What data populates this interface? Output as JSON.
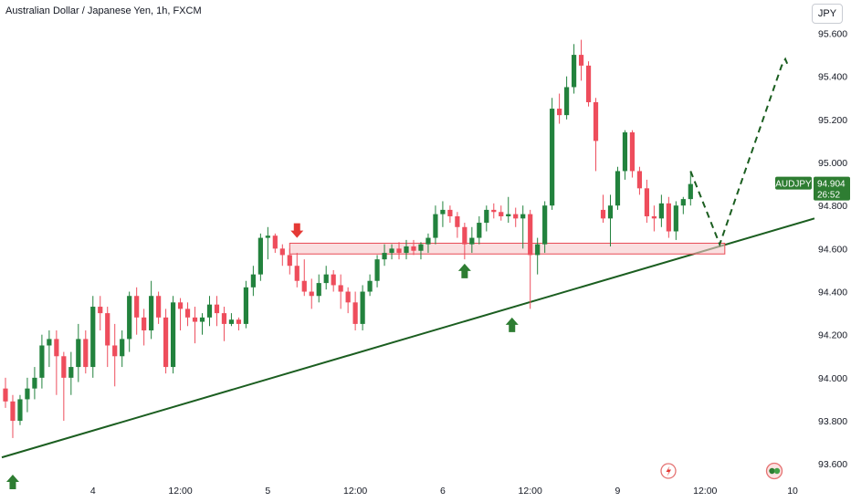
{
  "header": {
    "title": "Australian Dollar / Japanese Yen, 1h, FXCM",
    "currency_button": "JPY"
  },
  "price_badge": {
    "symbol": "AUDJPY",
    "price": "94.904",
    "countdown": "26:52"
  },
  "colors": {
    "up": "#22823d",
    "down": "#ee4d5c",
    "trendline": "#1b5e20",
    "zone_fill": "#f7c9cc",
    "zone_border": "#e84b55",
    "arrow_up": "#2e7d32",
    "arrow_down": "#e53935",
    "badge": "#2e7d32",
    "symbol_badge": "#2e7d32"
  },
  "icons": [
    "lightning-icon",
    "earnings-icon"
  ],
  "chart_data": {
    "type": "candlestick",
    "xlabel": "",
    "ylabel": "",
    "ylim": [
      93.55,
      95.67
    ],
    "ytick_labels": [
      "95.600",
      "95.400",
      "95.200",
      "95.000",
      "94.800",
      "94.600",
      "94.400",
      "94.200",
      "94.000",
      "93.800",
      "93.600"
    ],
    "yticks": [
      95.6,
      95.4,
      95.2,
      95.0,
      94.8,
      94.6,
      94.4,
      94.2,
      94.0,
      93.8,
      93.6
    ],
    "xtick_labels": [
      "4",
      "12:00",
      "5",
      "12:00",
      "6",
      "12:00",
      "9",
      "12:00",
      "10"
    ],
    "xtick_positions": [
      12.5,
      24.5,
      36.5,
      48.5,
      60.5,
      72.5,
      84.5,
      96.5,
      108.5
    ],
    "x_domain": [
      0,
      111
    ],
    "candles": [
      [
        93.95,
        94.0,
        93.86,
        93.89
      ],
      [
        93.89,
        93.92,
        93.72,
        93.8
      ],
      [
        93.8,
        93.92,
        93.78,
        93.9
      ],
      [
        93.9,
        94.0,
        93.84,
        93.95
      ],
      [
        93.95,
        94.05,
        93.9,
        94.0
      ],
      [
        94.0,
        94.2,
        93.95,
        94.15
      ],
      [
        94.15,
        94.22,
        94.05,
        94.18
      ],
      [
        94.18,
        94.22,
        93.92,
        94.1
      ],
      [
        94.1,
        94.12,
        93.8,
        94.0
      ],
      [
        94.0,
        94.12,
        93.92,
        94.05
      ],
      [
        94.05,
        94.25,
        93.98,
        94.18
      ],
      [
        94.18,
        94.22,
        94.02,
        94.05
      ],
      [
        94.05,
        94.38,
        94.0,
        94.33
      ],
      [
        94.33,
        94.38,
        94.22,
        94.3
      ],
      [
        94.3,
        94.33,
        94.05,
        94.15
      ],
      [
        94.15,
        94.25,
        93.96,
        94.1
      ],
      [
        94.1,
        94.22,
        94.05,
        94.18
      ],
      [
        94.18,
        94.4,
        94.12,
        94.38
      ],
      [
        94.38,
        94.42,
        94.2,
        94.28
      ],
      [
        94.28,
        94.32,
        94.15,
        94.22
      ],
      [
        94.22,
        94.45,
        94.18,
        94.38
      ],
      [
        94.38,
        94.4,
        94.25,
        94.28
      ],
      [
        94.28,
        94.32,
        94.02,
        94.05
      ],
      [
        94.05,
        94.38,
        94.02,
        94.35
      ],
      [
        94.35,
        94.37,
        94.22,
        94.32
      ],
      [
        94.32,
        94.35,
        94.24,
        94.28
      ],
      [
        94.28,
        94.33,
        94.16,
        94.26
      ],
      [
        94.26,
        94.3,
        94.2,
        94.28
      ],
      [
        94.28,
        94.38,
        94.24,
        94.34
      ],
      [
        94.34,
        94.38,
        94.24,
        94.3
      ],
      [
        94.3,
        94.33,
        94.17,
        94.25
      ],
      [
        94.25,
        94.3,
        94.24,
        94.27
      ],
      [
        94.27,
        94.28,
        94.22,
        94.25
      ],
      [
        94.25,
        94.45,
        94.23,
        94.42
      ],
      [
        94.42,
        94.52,
        94.38,
        94.48
      ],
      [
        94.48,
        94.67,
        94.45,
        94.65
      ],
      [
        94.65,
        94.7,
        94.55,
        94.66
      ],
      [
        94.66,
        94.67,
        94.58,
        94.6
      ],
      [
        94.6,
        94.62,
        94.52,
        94.57
      ],
      [
        94.57,
        94.6,
        94.48,
        94.52
      ],
      [
        94.52,
        94.58,
        94.42,
        94.45
      ],
      [
        94.45,
        94.55,
        94.38,
        94.4
      ],
      [
        94.4,
        94.46,
        94.32,
        94.38
      ],
      [
        94.38,
        94.48,
        94.35,
        94.44
      ],
      [
        94.44,
        94.52,
        94.41,
        94.48
      ],
      [
        94.48,
        94.5,
        94.4,
        94.43
      ],
      [
        94.43,
        94.48,
        94.32,
        94.4
      ],
      [
        94.4,
        94.42,
        94.3,
        94.35
      ],
      [
        94.35,
        94.4,
        94.22,
        94.25
      ],
      [
        94.25,
        94.43,
        94.22,
        94.4
      ],
      [
        94.4,
        94.48,
        94.38,
        94.45
      ],
      [
        94.45,
        94.57,
        94.42,
        94.55
      ],
      [
        94.55,
        94.62,
        94.52,
        94.58
      ],
      [
        94.58,
        94.62,
        94.55,
        94.6
      ],
      [
        94.6,
        94.63,
        94.55,
        94.58
      ],
      [
        94.58,
        94.64,
        94.55,
        94.61
      ],
      [
        94.61,
        94.64,
        94.57,
        94.59
      ],
      [
        94.59,
        94.63,
        94.55,
        94.62
      ],
      [
        94.62,
        94.67,
        94.58,
        94.65
      ],
      [
        94.65,
        94.8,
        94.62,
        94.76
      ],
      [
        94.76,
        94.82,
        94.7,
        94.78
      ],
      [
        94.78,
        94.8,
        94.72,
        94.75
      ],
      [
        94.75,
        94.77,
        94.65,
        94.7
      ],
      [
        94.7,
        94.72,
        94.55,
        94.62
      ],
      [
        94.62,
        94.7,
        94.58,
        94.65
      ],
      [
        94.65,
        94.75,
        94.62,
        94.72
      ],
      [
        94.72,
        94.8,
        94.68,
        94.78
      ],
      [
        94.78,
        94.81,
        94.74,
        94.77
      ],
      [
        94.77,
        94.8,
        94.73,
        94.75
      ],
      [
        94.75,
        94.84,
        94.72,
        94.76
      ],
      [
        94.76,
        94.79,
        94.7,
        94.74
      ],
      [
        94.74,
        94.8,
        94.6,
        94.76
      ],
      [
        94.76,
        94.78,
        94.32,
        94.57
      ],
      [
        94.57,
        94.65,
        94.48,
        94.62
      ],
      [
        94.62,
        94.82,
        94.58,
        94.8
      ],
      [
        94.8,
        95.3,
        94.78,
        95.25
      ],
      [
        95.25,
        95.32,
        95.18,
        95.22
      ],
      [
        95.22,
        95.4,
        95.2,
        95.35
      ],
      [
        95.35,
        95.55,
        95.32,
        95.5
      ],
      [
        95.5,
        95.57,
        95.38,
        95.45
      ],
      [
        95.45,
        95.47,
        95.26,
        95.28
      ],
      [
        95.28,
        95.3,
        94.96,
        95.1
      ],
      [
        94.78,
        94.85,
        94.72,
        94.74
      ],
      [
        94.74,
        94.85,
        94.61,
        94.8
      ],
      [
        94.8,
        94.98,
        94.78,
        94.96
      ],
      [
        94.96,
        95.15,
        94.92,
        95.14
      ],
      [
        95.14,
        95.15,
        94.93,
        94.96
      ],
      [
        94.96,
        94.98,
        94.85,
        94.88
      ],
      [
        94.88,
        94.92,
        94.72,
        94.75
      ],
      [
        94.75,
        94.8,
        94.68,
        94.74
      ],
      [
        94.74,
        94.85,
        94.7,
        94.81
      ],
      [
        94.81,
        94.84,
        94.65,
        94.68
      ],
      [
        94.68,
        94.82,
        94.64,
        94.8
      ],
      [
        94.8,
        94.84,
        94.76,
        94.83
      ],
      [
        94.83,
        94.96,
        94.8,
        94.9
      ]
    ],
    "trendline": {
      "from": [
        0,
        93.63
      ],
      "to": [
        111.5,
        94.74
      ]
    },
    "forecast_path": [
      [
        94.5,
        94.96
      ],
      [
        98.5,
        94.62
      ],
      [
        107,
        95.45
      ],
      [
        107.5,
        95.48
      ],
      [
        108,
        95.44
      ]
    ],
    "zone": {
      "x_from": 39.5,
      "x_to": 99.2,
      "y_top": 94.625,
      "y_bottom": 94.575
    },
    "markers": [
      {
        "type": "up",
        "x": 1.5,
        "y": 93.55
      },
      {
        "type": "down",
        "x": 40.5,
        "y": 94.65
      },
      {
        "type": "up",
        "x": 63.5,
        "y": 94.53
      },
      {
        "type": "up",
        "x": 70.0,
        "y": 94.28
      }
    ],
    "current_price": 94.904
  }
}
